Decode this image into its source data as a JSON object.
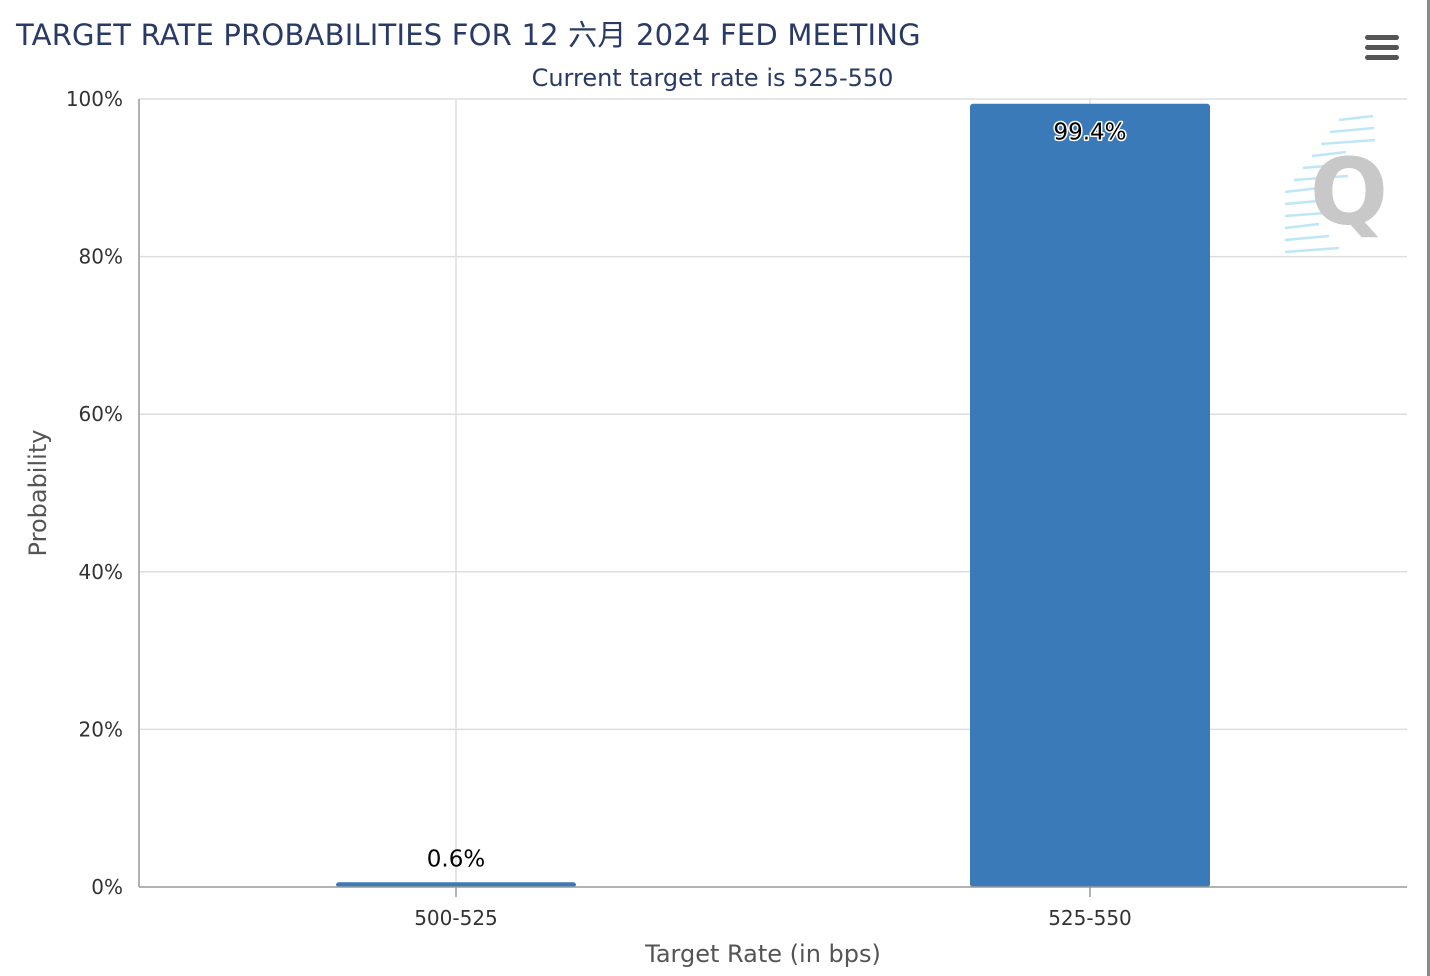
{
  "header": {
    "title": "TARGET RATE PROBABILITIES FOR 12 六月 2024 FED MEETING",
    "subtitle": "Current target rate is 525-550"
  },
  "toolbar": {
    "menu_icon": "hamburger-menu-icon"
  },
  "watermark": {
    "letter": "Q"
  },
  "colors": {
    "bar": "#3b7ab8",
    "grid": "#dddddd",
    "axis": "#999999",
    "title": "#2a3a66",
    "watermark": "#c8c8c8",
    "watermark_lines": "#aee0f5"
  },
  "chart_data": {
    "type": "bar",
    "title": "TARGET RATE PROBABILITIES FOR 12 六月 2024 FED MEETING",
    "subtitle": "Current target rate is 525-550",
    "categories": [
      "500-525",
      "525-550"
    ],
    "values": [
      0.6,
      99.4
    ],
    "data_labels": [
      "0.6%",
      "99.4%"
    ],
    "xlabel": "Target Rate (in bps)",
    "ylabel": "Probability",
    "ylim": [
      0,
      100
    ],
    "yticks": [
      0,
      20,
      40,
      60,
      80,
      100
    ],
    "ytick_labels": [
      "0%",
      "20%",
      "40%",
      "60%",
      "80%",
      "100%"
    ],
    "grid": true,
    "legend": "none"
  }
}
